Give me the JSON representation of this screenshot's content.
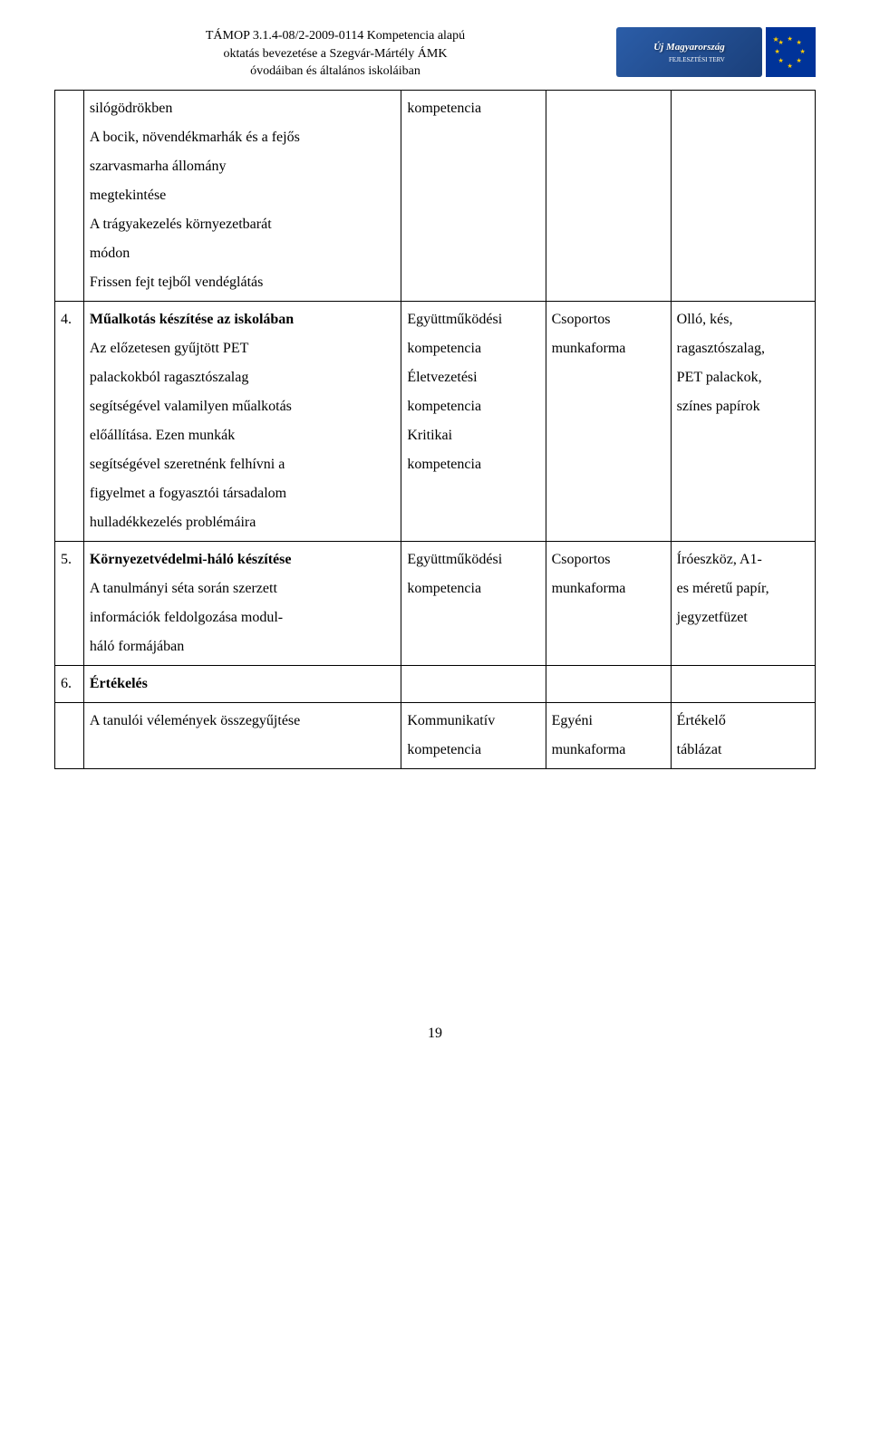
{
  "header": {
    "line1": "TÁMOP 3.1.4-08/2-2009-0114 Kompetencia alapú",
    "line2": "oktatás bevezetése a Szegvár-Mártély ÁMK",
    "line3": "óvodáiban és általános iskoláiban",
    "logo_main": "Új Magyarország",
    "logo_sub": "FEJLESZTÉSI TERV"
  },
  "rows": [
    {
      "num": "",
      "desc_lines": [
        "silógödrökben",
        "A bocik, növendékmarhák és a fejős",
        "szarvasmarha állomány",
        "megtekintése",
        "A trágyakezelés környezetbarát",
        "módon",
        "Frissen fejt tejből vendéglátás"
      ],
      "comp_lines": [
        "kompetencia"
      ],
      "form_lines": [],
      "tool_lines": []
    },
    {
      "num": "4.",
      "desc_bold": "Műalkotás készítése az iskolában",
      "desc_lines": [
        "Az előzetesen gyűjtött PET",
        "palackokból ragasztószalag",
        "segítségével valamilyen műalkotás",
        "előállítása. Ezen munkák",
        "segítségével szeretnénk felhívni a",
        "figyelmet a fogyasztói társadalom",
        "hulladékkezelés problémáira"
      ],
      "comp_lines": [
        "Együttműködési",
        "kompetencia",
        "Életvezetési",
        "kompetencia",
        "Kritikai",
        "kompetencia"
      ],
      "form_lines": [
        "Csoportos",
        "munkaforma"
      ],
      "tool_lines": [
        "Olló, kés,",
        "ragasztószalag,",
        "PET palackok,",
        "színes papírok"
      ]
    },
    {
      "num": "5.",
      "desc_bold": "Környezetvédelmi-háló készítése",
      "desc_lines": [
        "A tanulmányi séta során szerzett",
        "információk feldolgozása modul-",
        "háló formájában"
      ],
      "comp_lines": [
        "Együttműködési",
        "kompetencia"
      ],
      "form_lines": [
        "Csoportos",
        "munkaforma"
      ],
      "tool_lines": [
        "Íróeszköz, A1-",
        "es méretű papír,",
        "jegyzetfüzet"
      ]
    },
    {
      "num": "6.",
      "desc_bold": "Értékelés",
      "desc_lines": [],
      "comp_lines": [],
      "form_lines": [],
      "tool_lines": []
    },
    {
      "num": "",
      "desc_lines": [
        "A tanulói vélemények összegyűjtése"
      ],
      "comp_lines": [
        "Kommunikatív",
        "kompetencia"
      ],
      "form_lines": [
        "Egyéni",
        "munkaforma"
      ],
      "tool_lines": [
        "Értékelő",
        "táblázat"
      ]
    }
  ],
  "page_number": "19"
}
